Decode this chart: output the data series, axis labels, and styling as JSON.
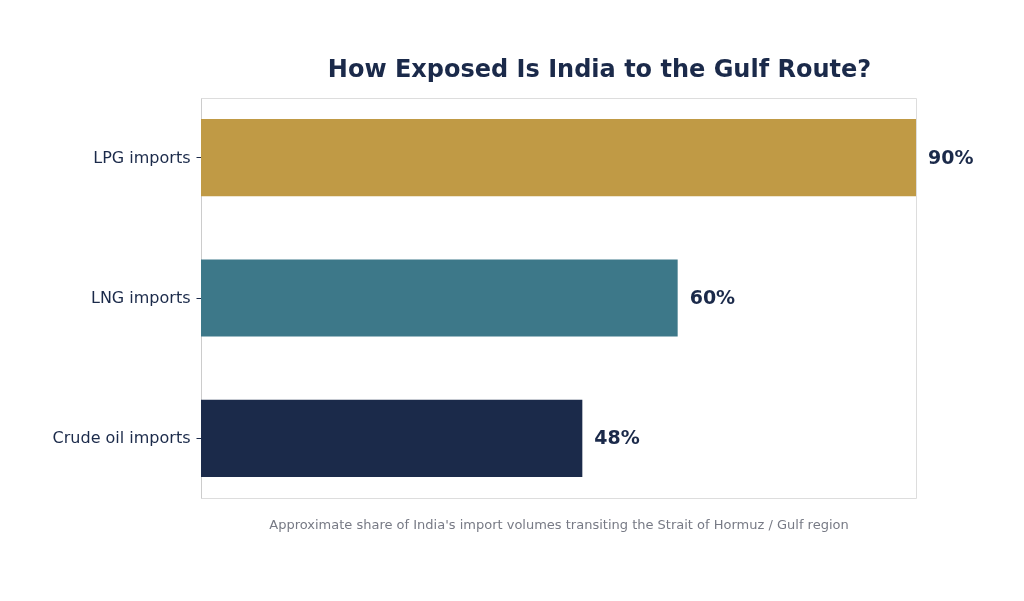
{
  "chart_data": {
    "type": "bar",
    "orientation": "horizontal",
    "title": "How Exposed Is India to the Gulf Route?",
    "xlabel": "Approximate share of India's import volumes transiting the Strait of Hormuz / Gulf region",
    "categories": [
      "LPG imports",
      "LNG imports",
      "Crude oil imports"
    ],
    "values": [
      90,
      60,
      48
    ],
    "colors": [
      "#c09a45",
      "#3d7889",
      "#1b2a4a"
    ],
    "value_labels": [
      "90%",
      "60%",
      "48%"
    ]
  }
}
